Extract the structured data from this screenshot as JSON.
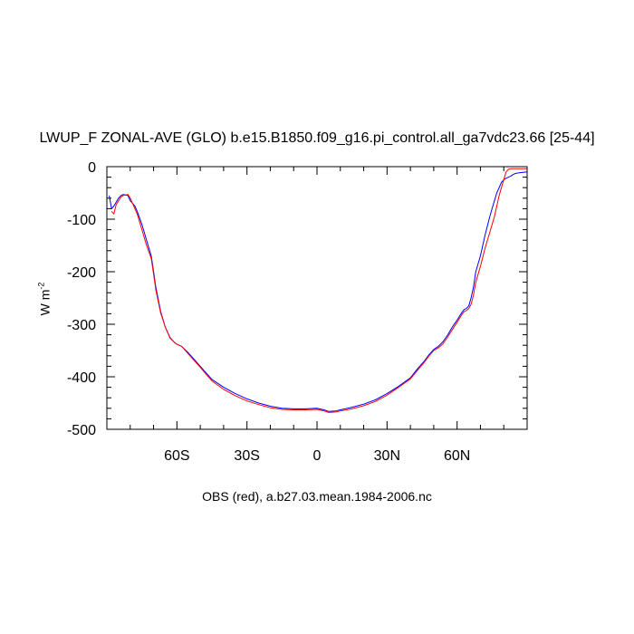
{
  "chart_data": {
    "type": "line",
    "title": "LWUP_F ZONAL-AVE (GLO) b.e15.B1850.f09_g16.pi_control.all_ga7vdc23.66 [25-44]",
    "xlabel": "OBS (red), a.b27.03.mean.1984-2006.nc",
    "ylabel_main": "W m",
    "ylabel_sup": "-2",
    "xlim": [
      -90,
      90
    ],
    "ylim": [
      -500,
      0
    ],
    "x_ticks": [
      {
        "value": -60,
        "label": "60S"
      },
      {
        "value": -30,
        "label": "30S"
      },
      {
        "value": 0,
        "label": "0"
      },
      {
        "value": 30,
        "label": "30N"
      },
      {
        "value": 60,
        "label": "60N"
      }
    ],
    "y_ticks": [
      {
        "value": 0,
        "label": "0"
      },
      {
        "value": -100,
        "label": "-100"
      },
      {
        "value": -200,
        "label": "-200"
      },
      {
        "value": -300,
        "label": "-300"
      },
      {
        "value": -400,
        "label": "-400"
      },
      {
        "value": -500,
        "label": "-500"
      }
    ],
    "series": [
      {
        "color": "#0000ff",
        "x": [
          -89,
          -88,
          -87,
          -85,
          -84,
          -83,
          -81,
          -80,
          -79,
          -78,
          -77,
          -75,
          -73,
          -71,
          -70,
          -69,
          -67,
          -65,
          -63,
          -61,
          -60,
          -58,
          -55,
          -52,
          -50,
          -45,
          -40,
          -35,
          -30,
          -25,
          -20,
          -15,
          -10,
          -5,
          0,
          3,
          5,
          8,
          10,
          15,
          20,
          25,
          30,
          35,
          40,
          43,
          46,
          48,
          50,
          52,
          54,
          56,
          58,
          60,
          62,
          63,
          64,
          65,
          66,
          67,
          68,
          70,
          72,
          74,
          75,
          76,
          77,
          78,
          79,
          80,
          81,
          82,
          83,
          84,
          85,
          86,
          88,
          90
        ],
        "y": [
          -55,
          -80,
          -75,
          -60,
          -55,
          -53,
          -55,
          -65,
          -70,
          -75,
          -85,
          -110,
          -140,
          -170,
          -200,
          -230,
          -275,
          -305,
          -325,
          -335,
          -338,
          -342,
          -355,
          -370,
          -380,
          -405,
          -420,
          -432,
          -442,
          -450,
          -456,
          -460,
          -461,
          -461,
          -460,
          -463,
          -466,
          -465,
          -463,
          -458,
          -452,
          -444,
          -432,
          -418,
          -402,
          -385,
          -370,
          -358,
          -348,
          -342,
          -333,
          -320,
          -305,
          -292,
          -278,
          -272,
          -270,
          -265,
          -250,
          -230,
          -200,
          -170,
          -130,
          -95,
          -80,
          -65,
          -50,
          -40,
          -30,
          -25,
          -22,
          -20,
          -18,
          -15,
          -13,
          -12,
          -11,
          -10
        ]
      },
      {
        "color": "#ff0000",
        "x": [
          -88,
          -87,
          -86,
          -84,
          -83,
          -81,
          -80,
          -79,
          -78,
          -77,
          -75,
          -73,
          -71,
          -70,
          -69,
          -67,
          -65,
          -63,
          -61,
          -60,
          -58,
          -55,
          -52,
          -50,
          -45,
          -40,
          -35,
          -30,
          -25,
          -20,
          -15,
          -10,
          -5,
          0,
          3,
          5,
          8,
          10,
          15,
          20,
          25,
          30,
          35,
          40,
          43,
          46,
          48,
          50,
          52,
          54,
          56,
          58,
          60,
          62,
          63,
          64,
          65,
          66,
          67,
          68,
          70,
          72,
          74,
          75,
          76,
          77,
          78,
          79,
          80,
          81,
          82,
          83,
          84,
          85,
          86,
          88,
          90
        ],
        "y": [
          -85,
          -90,
          -72,
          -58,
          -55,
          -53,
          -60,
          -70,
          -80,
          -90,
          -120,
          -150,
          -175,
          -205,
          -235,
          -278,
          -305,
          -326,
          -335,
          -338,
          -342,
          -357,
          -372,
          -382,
          -408,
          -424,
          -436,
          -446,
          -453,
          -459,
          -462,
          -463,
          -463,
          -462,
          -465,
          -468,
          -467,
          -465,
          -461,
          -455,
          -447,
          -435,
          -420,
          -404,
          -388,
          -372,
          -360,
          -350,
          -345,
          -337,
          -324,
          -310,
          -296,
          -282,
          -276,
          -274,
          -270,
          -262,
          -245,
          -220,
          -190,
          -155,
          -125,
          -110,
          -95,
          -75,
          -55,
          -40,
          -25,
          -10,
          -5,
          -4,
          -4,
          -4,
          -4,
          -4,
          -4
        ]
      }
    ],
    "grid": false,
    "legend": "none"
  }
}
